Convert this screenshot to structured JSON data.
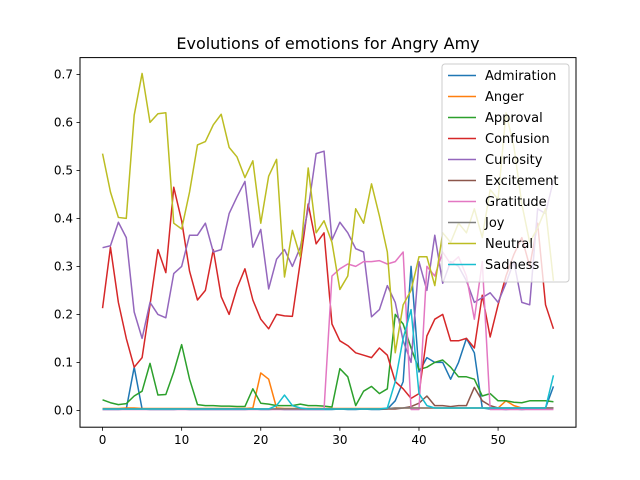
{
  "chart_data": {
    "type": "line",
    "title": "Evolutions of emotions for Angry Amy",
    "xlabel": "",
    "ylabel": "",
    "xlim": [
      -2.85,
      59.85
    ],
    "ylim": [
      -0.035,
      0.735
    ],
    "xticks": [
      0,
      10,
      20,
      30,
      40,
      50
    ],
    "yticks": [
      0.0,
      0.1,
      0.2,
      0.3,
      0.4,
      0.5,
      0.6,
      0.7
    ],
    "grid": false,
    "legend_position": "top-right",
    "x": [
      0,
      1,
      2,
      3,
      4,
      5,
      6,
      7,
      8,
      9,
      10,
      11,
      12,
      13,
      14,
      15,
      16,
      17,
      18,
      19,
      20,
      21,
      22,
      23,
      24,
      25,
      26,
      27,
      28,
      29,
      30,
      31,
      32,
      33,
      34,
      35,
      36,
      37,
      38,
      39,
      40,
      41,
      42,
      43,
      44,
      45,
      46,
      47,
      48,
      49,
      50,
      51,
      52,
      53,
      54,
      55,
      56,
      57
    ],
    "series": [
      {
        "name": "Admiration",
        "color": "#1f77b4",
        "values": [
          0.002,
          0.002,
          0.002,
          0.003,
          0.09,
          0.003,
          0.002,
          0.002,
          0.002,
          0.002,
          0.003,
          0.002,
          0.002,
          0.002,
          0.002,
          0.002,
          0.002,
          0.002,
          0.002,
          0.003,
          0.002,
          0.002,
          0.003,
          0.002,
          0.002,
          0.002,
          0.002,
          0.002,
          0.002,
          0.002,
          0.003,
          0.002,
          0.002,
          0.003,
          0.002,
          0.002,
          0.003,
          0.02,
          0.06,
          0.3,
          0.08,
          0.11,
          0.1,
          0.1,
          0.065,
          0.1,
          0.15,
          0.12,
          0.005,
          0.003,
          0.003,
          0.002,
          0.003,
          0.002,
          0.003,
          0.003,
          0.005,
          0.05
        ]
      },
      {
        "name": "Anger",
        "color": "#ff7f0e",
        "values": [
          0.004,
          0.004,
          0.004,
          0.005,
          0.005,
          0.004,
          0.004,
          0.004,
          0.004,
          0.004,
          0.004,
          0.004,
          0.004,
          0.004,
          0.004,
          0.004,
          0.004,
          0.004,
          0.004,
          0.005,
          0.078,
          0.065,
          0.005,
          0.004,
          0.004,
          0.004,
          0.004,
          0.004,
          0.004,
          0.004,
          0.004,
          0.004,
          0.004,
          0.004,
          0.004,
          0.004,
          0.004,
          0.005,
          0.005,
          0.005,
          0.005,
          0.005,
          0.005,
          0.005,
          0.005,
          0.005,
          0.005,
          0.005,
          0.005,
          0.005,
          0.005,
          0.02,
          0.01,
          0.005,
          0.005,
          0.005,
          0.005,
          0.005
        ]
      },
      {
        "name": "Approval",
        "color": "#2ca02c",
        "values": [
          0.022,
          0.016,
          0.012,
          0.014,
          0.03,
          0.04,
          0.098,
          0.032,
          0.033,
          0.08,
          0.137,
          0.065,
          0.012,
          0.01,
          0.01,
          0.009,
          0.009,
          0.008,
          0.008,
          0.045,
          0.015,
          0.013,
          0.01,
          0.01,
          0.01,
          0.013,
          0.01,
          0.01,
          0.009,
          0.007,
          0.087,
          0.07,
          0.01,
          0.04,
          0.05,
          0.035,
          0.045,
          0.2,
          0.18,
          0.13,
          0.085,
          0.09,
          0.1,
          0.105,
          0.09,
          0.07,
          0.07,
          0.065,
          0.03,
          0.035,
          0.02,
          0.02,
          0.017,
          0.016,
          0.02,
          0.02,
          0.02,
          0.018
        ]
      },
      {
        "name": "Confusion",
        "color": "#d62728",
        "values": [
          0.213,
          0.34,
          0.225,
          0.15,
          0.09,
          0.11,
          0.22,
          0.335,
          0.287,
          0.465,
          0.395,
          0.29,
          0.23,
          0.25,
          0.335,
          0.237,
          0.2,
          0.255,
          0.295,
          0.23,
          0.19,
          0.17,
          0.2,
          0.197,
          0.196,
          0.31,
          0.43,
          0.347,
          0.37,
          0.18,
          0.145,
          0.135,
          0.12,
          0.115,
          0.11,
          0.13,
          0.115,
          0.06,
          0.045,
          0.025,
          0.035,
          0.155,
          0.19,
          0.2,
          0.145,
          0.145,
          0.15,
          0.13,
          0.24,
          0.153,
          0.22,
          0.28,
          0.325,
          0.36,
          0.3,
          0.39,
          0.22,
          0.17
        ]
      },
      {
        "name": "Curiosity",
        "color": "#9467bd",
        "values": [
          0.339,
          0.343,
          0.392,
          0.36,
          0.205,
          0.15,
          0.225,
          0.2,
          0.193,
          0.285,
          0.3,
          0.365,
          0.365,
          0.39,
          0.33,
          0.335,
          0.41,
          0.445,
          0.477,
          0.34,
          0.377,
          0.253,
          0.315,
          0.335,
          0.3,
          0.34,
          0.42,
          0.535,
          0.54,
          0.355,
          0.392,
          0.37,
          0.337,
          0.33,
          0.195,
          0.21,
          0.26,
          0.225,
          0.145,
          0.1,
          0.31,
          0.25,
          0.365,
          0.265,
          0.31,
          0.3,
          0.27,
          0.225,
          0.235,
          0.245,
          0.225,
          0.265,
          0.31,
          0.225,
          0.22,
          0.42,
          0.41,
          0.48
        ]
      },
      {
        "name": "Excitement",
        "color": "#8c564b",
        "values": [
          0.003,
          0.003,
          0.003,
          0.003,
          0.003,
          0.003,
          0.003,
          0.003,
          0.003,
          0.003,
          0.003,
          0.003,
          0.003,
          0.003,
          0.003,
          0.003,
          0.003,
          0.003,
          0.003,
          0.003,
          0.003,
          0.003,
          0.003,
          0.003,
          0.003,
          0.003,
          0.003,
          0.003,
          0.003,
          0.003,
          0.003,
          0.003,
          0.003,
          0.003,
          0.003,
          0.003,
          0.003,
          0.003,
          0.005,
          0.008,
          0.015,
          0.03,
          0.01,
          0.01,
          0.008,
          0.01,
          0.01,
          0.048,
          0.02,
          0.01,
          0.005,
          0.005,
          0.005,
          0.005,
          0.005,
          0.005,
          0.005,
          0.005
        ]
      },
      {
        "name": "Gratitude",
        "color": "#e377c2",
        "values": [
          0.002,
          0.002,
          0.002,
          0.002,
          0.002,
          0.002,
          0.002,
          0.002,
          0.002,
          0.002,
          0.002,
          0.002,
          0.002,
          0.002,
          0.002,
          0.002,
          0.002,
          0.002,
          0.002,
          0.002,
          0.002,
          0.002,
          0.002,
          0.002,
          0.002,
          0.002,
          0.002,
          0.002,
          0.002,
          0.28,
          0.295,
          0.305,
          0.3,
          0.31,
          0.31,
          0.312,
          0.305,
          0.31,
          0.33,
          0.002,
          0.002,
          0.3,
          0.28,
          0.33,
          0.305,
          0.32,
          0.28,
          0.19,
          0.31,
          0.002,
          0.002,
          0.002,
          0.002,
          0.002,
          0.002,
          0.002,
          0.002,
          0.002
        ]
      },
      {
        "name": "Joy",
        "color": "#7f7f7f",
        "values": [
          0.003,
          0.003,
          0.003,
          0.003,
          0.003,
          0.003,
          0.003,
          0.003,
          0.003,
          0.003,
          0.003,
          0.003,
          0.003,
          0.003,
          0.003,
          0.003,
          0.003,
          0.003,
          0.003,
          0.003,
          0.003,
          0.003,
          0.003,
          0.003,
          0.003,
          0.003,
          0.003,
          0.003,
          0.003,
          0.003,
          0.003,
          0.003,
          0.003,
          0.003,
          0.003,
          0.003,
          0.004,
          0.005,
          0.005,
          0.005,
          0.005,
          0.005,
          0.005,
          0.005,
          0.005,
          0.005,
          0.005,
          0.005,
          0.005,
          0.005,
          0.005,
          0.005,
          0.005,
          0.005,
          0.005,
          0.005,
          0.005,
          0.005
        ]
      },
      {
        "name": "Neutral",
        "color": "#bcbd22",
        "values": [
          0.535,
          0.455,
          0.402,
          0.4,
          0.615,
          0.702,
          0.6,
          0.618,
          0.62,
          0.39,
          0.378,
          0.455,
          0.553,
          0.56,
          0.595,
          0.617,
          0.548,
          0.528,
          0.485,
          0.52,
          0.39,
          0.488,
          0.523,
          0.278,
          0.375,
          0.32,
          0.505,
          0.37,
          0.395,
          0.35,
          0.252,
          0.28,
          0.42,
          0.39,
          0.472,
          0.405,
          0.33,
          0.12,
          0.22,
          0.25,
          0.32,
          0.32,
          0.26,
          0.37,
          0.35,
          0.39,
          0.37,
          0.42,
          0.36,
          0.46,
          0.44,
          0.62,
          0.55,
          0.43,
          0.35,
          0.38,
          0.42,
          0.27
        ]
      },
      {
        "name": "Sadness",
        "color": "#17becf",
        "values": [
          0.003,
          0.003,
          0.003,
          0.003,
          0.003,
          0.003,
          0.003,
          0.003,
          0.003,
          0.003,
          0.003,
          0.003,
          0.003,
          0.003,
          0.003,
          0.003,
          0.003,
          0.003,
          0.003,
          0.003,
          0.003,
          0.003,
          0.01,
          0.032,
          0.01,
          0.005,
          0.003,
          0.003,
          0.003,
          0.003,
          0.003,
          0.003,
          0.003,
          0.003,
          0.003,
          0.003,
          0.005,
          0.06,
          0.15,
          0.21,
          0.035,
          0.01,
          0.005,
          0.005,
          0.005,
          0.005,
          0.005,
          0.005,
          0.005,
          0.005,
          0.005,
          0.005,
          0.005,
          0.005,
          0.005,
          0.005,
          0.005,
          0.073
        ]
      }
    ]
  }
}
